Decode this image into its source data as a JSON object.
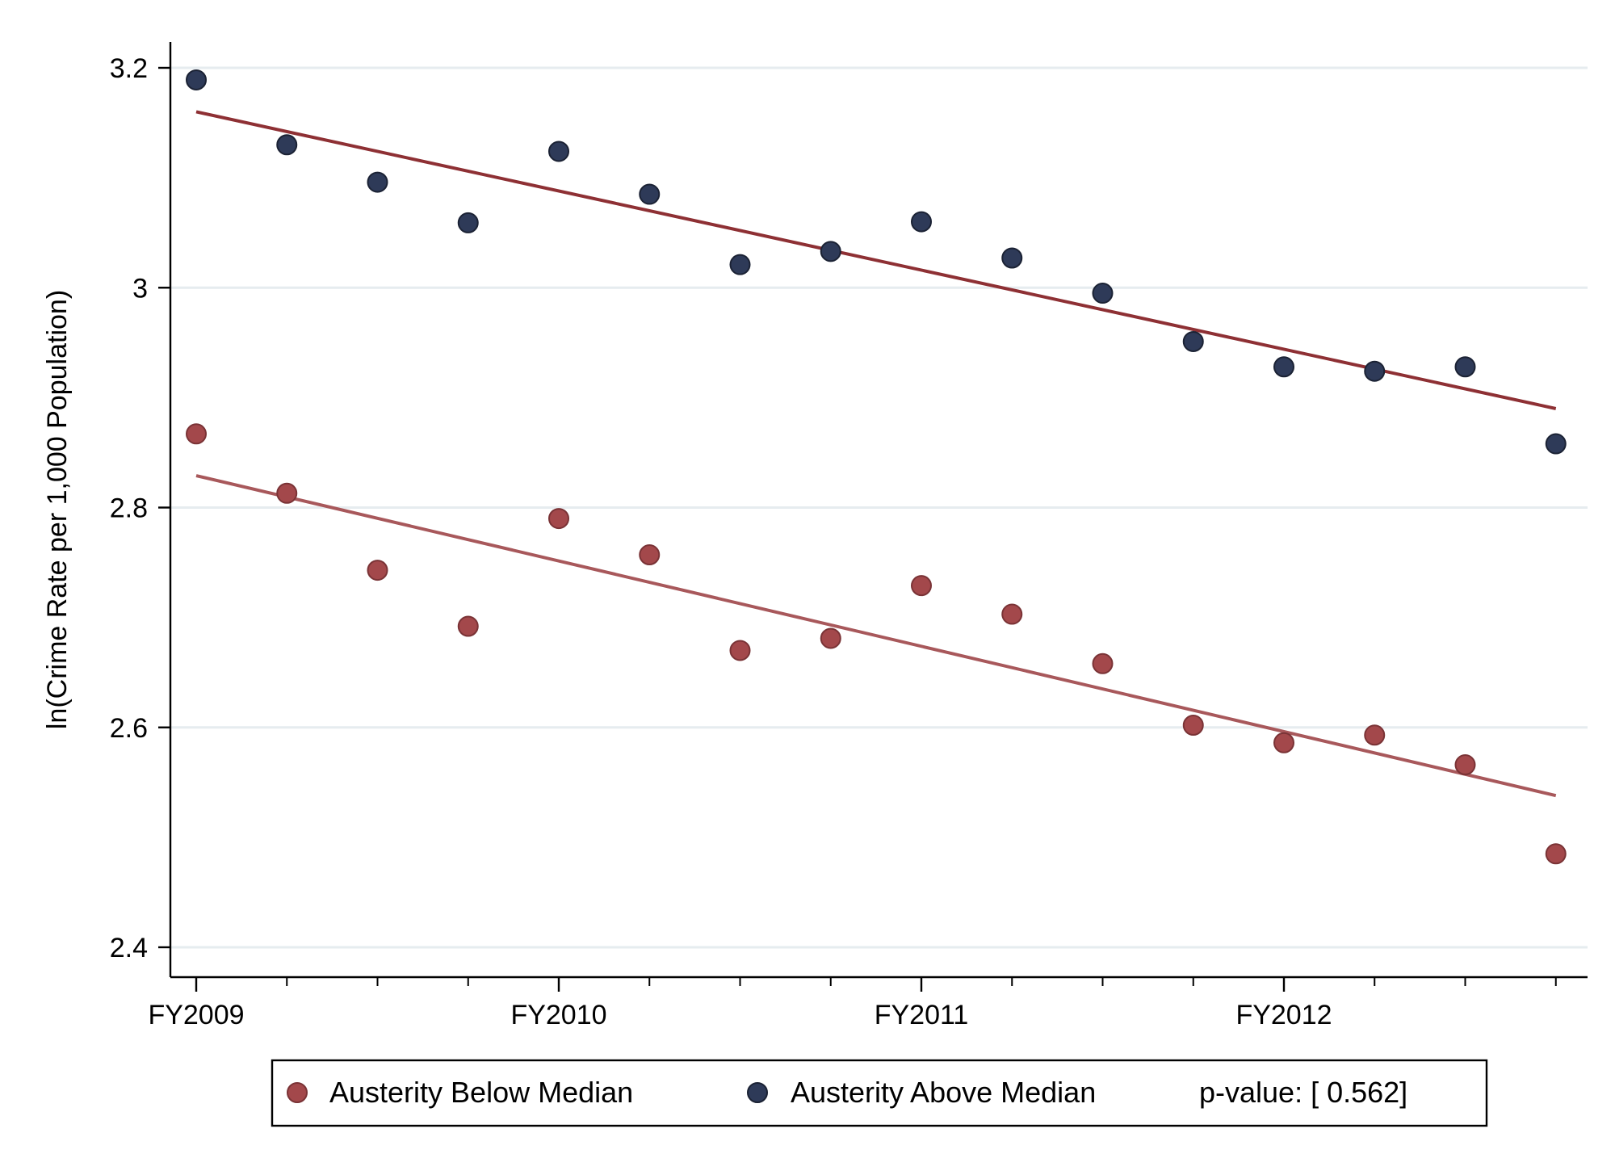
{
  "chart_data": {
    "type": "scatter",
    "title": "",
    "xlabel": "",
    "ylabel": "ln(Crime Rate per 1,000 Population)",
    "ylim": [
      2.4,
      3.2
    ],
    "yticks": [
      2.4,
      2.6,
      2.8,
      3.0,
      3.2
    ],
    "ytick_labels": [
      "2.4",
      "2.6",
      "2.8",
      "3",
      "3.2"
    ],
    "xlim": [
      0,
      15
    ],
    "xticks_labeled": [
      {
        "x": 0,
        "label": "FY2009"
      },
      {
        "x": 4,
        "label": "FY2010"
      },
      {
        "x": 8,
        "label": "FY2011"
      },
      {
        "x": 12,
        "label": "FY2012"
      }
    ],
    "xticks_minor": [
      1,
      2,
      3,
      5,
      6,
      7,
      9,
      10,
      11,
      13,
      14,
      15
    ],
    "grid": true,
    "legend_position": "bottom",
    "annotation": "p-value: [ 0.562]",
    "series": [
      {
        "name": "Austerity Below Median",
        "color": "#a3484b",
        "line_color": "#a8585b",
        "x": [
          0,
          1,
          2,
          3,
          4,
          5,
          6,
          7,
          8,
          9,
          10,
          11,
          12,
          13,
          14,
          15
        ],
        "values": [
          2.867,
          2.813,
          2.743,
          2.692,
          2.79,
          2.757,
          2.67,
          2.681,
          2.729,
          2.703,
          2.658,
          2.602,
          2.586,
          2.593,
          2.566,
          2.485
        ],
        "fit": {
          "x": [
            0,
            15
          ],
          "y": [
            2.829,
            2.538
          ]
        }
      },
      {
        "name": "Austerity Above Median",
        "color": "#2e3a58",
        "line_color": "#8e3034",
        "x": [
          0,
          1,
          2,
          3,
          4,
          5,
          6,
          7,
          8,
          9,
          10,
          11,
          12,
          13,
          14,
          15
        ],
        "values": [
          3.189,
          3.13,
          3.096,
          3.059,
          3.124,
          3.085,
          3.021,
          3.033,
          3.06,
          3.027,
          2.995,
          2.951,
          2.928,
          2.924,
          2.928,
          2.858
        ],
        "fit": {
          "x": [
            0,
            15
          ],
          "y": [
            3.16,
            2.89
          ]
        }
      }
    ]
  }
}
